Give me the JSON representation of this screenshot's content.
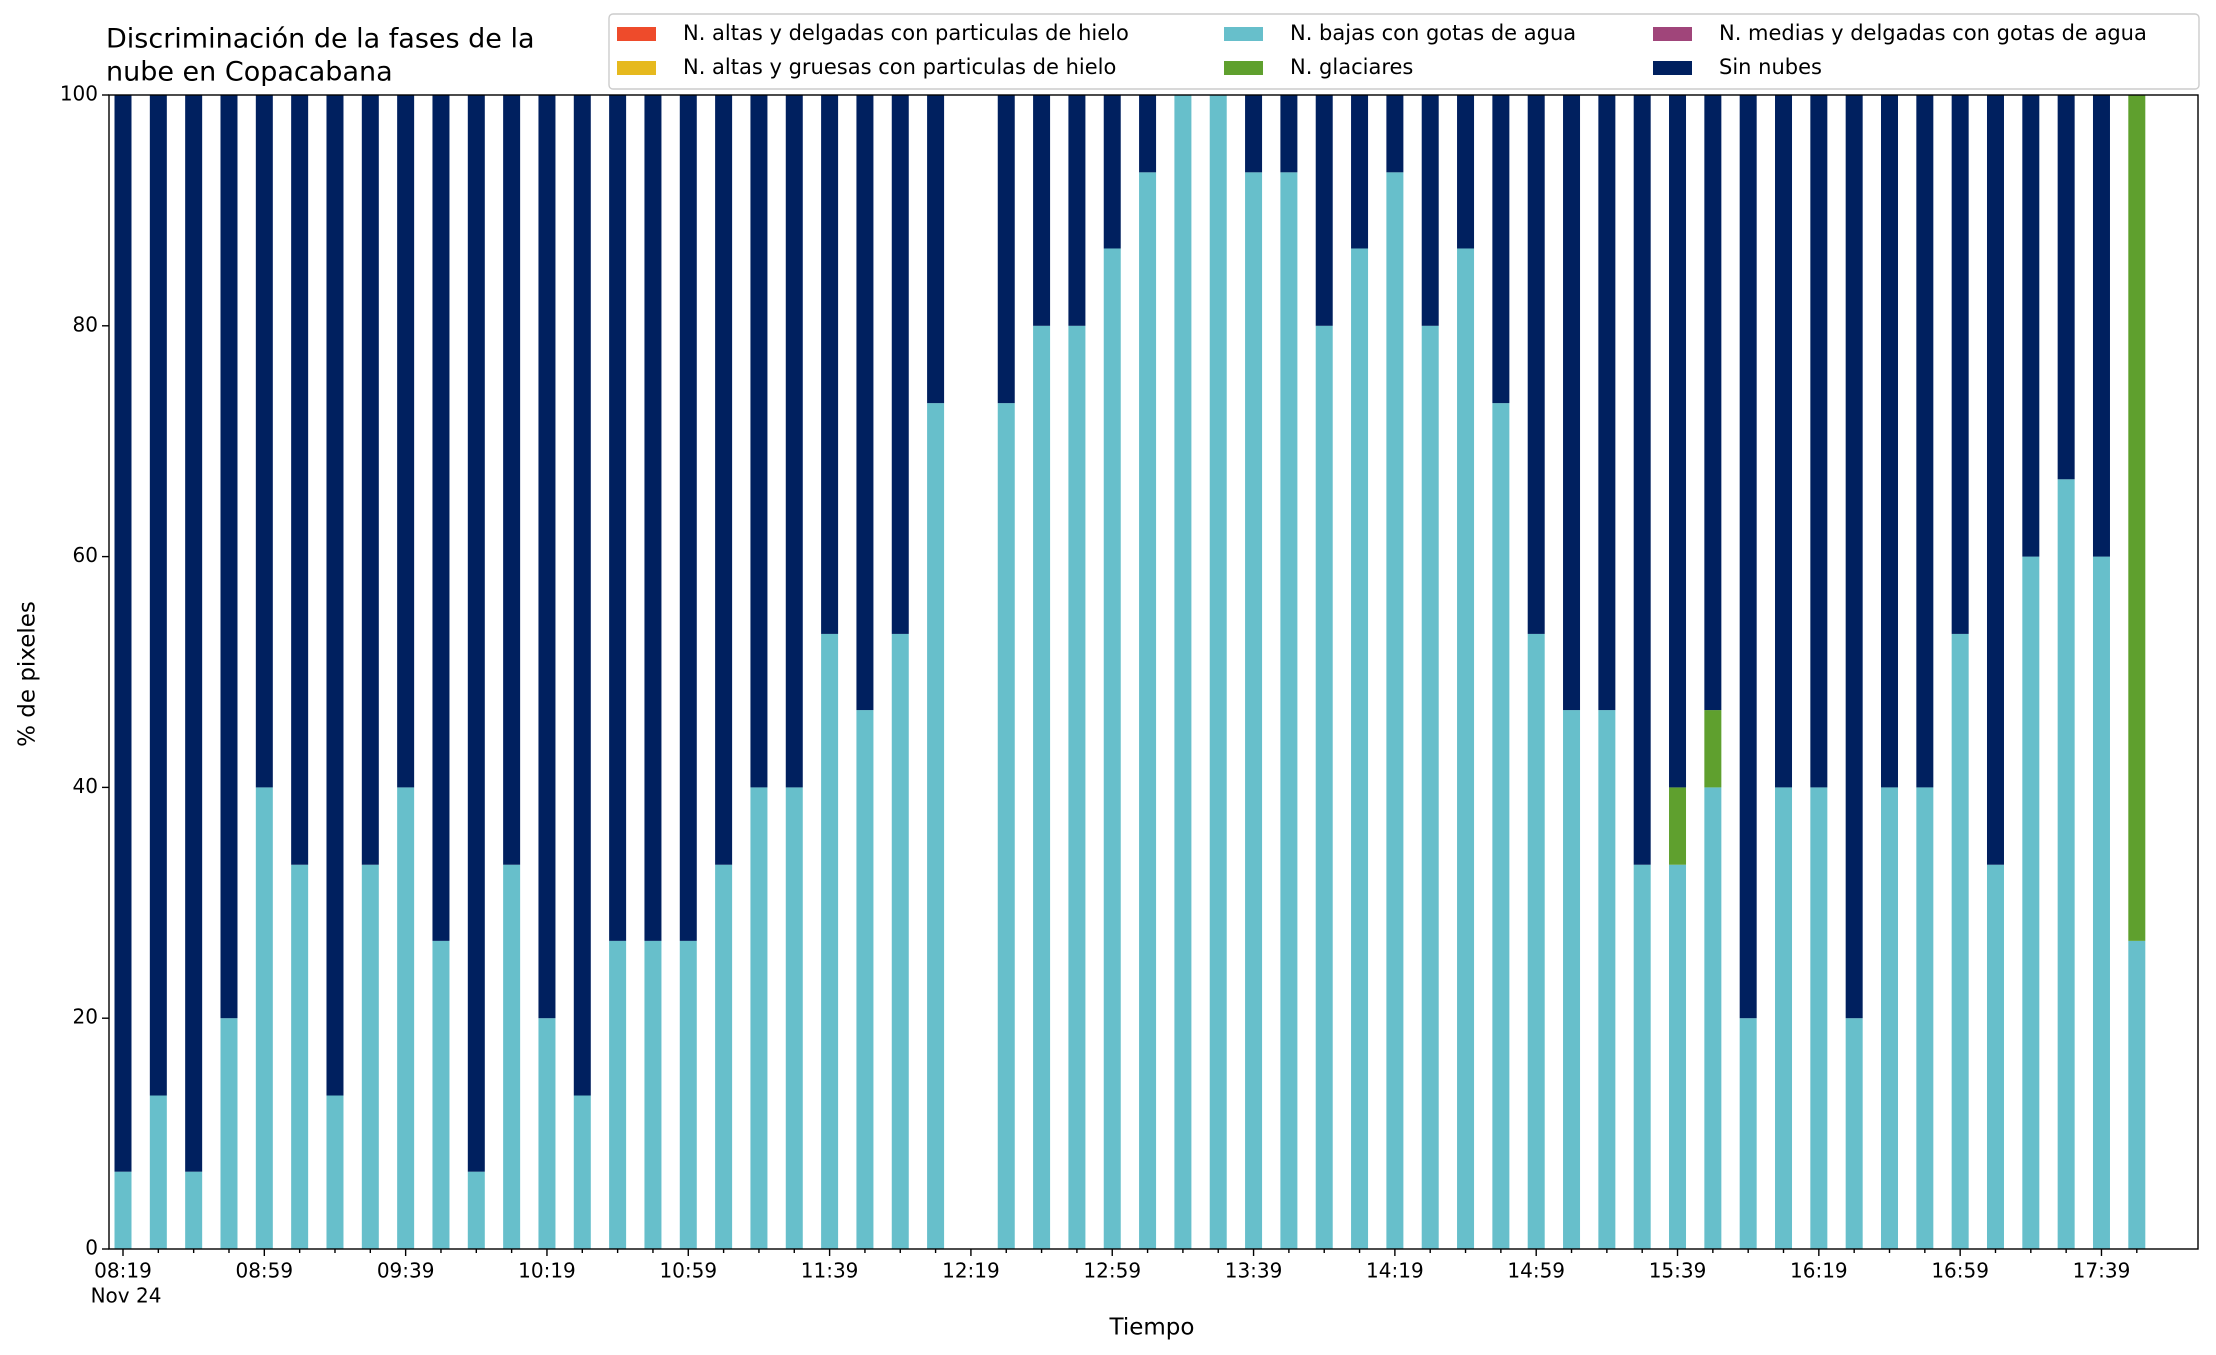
{
  "chart_data": {
    "type": "stacked_bar",
    "title": [
      "Discriminación de la fases de la",
      "nube en Copacabana"
    ],
    "x_label": "Tiempo",
    "y_label": "% de pixeles",
    "x_sublabel": "Nov 24",
    "categories": [
      "08:19",
      null,
      null,
      null,
      "08:59",
      null,
      null,
      null,
      "09:39",
      null,
      null,
      null,
      "10:19",
      null,
      null,
      null,
      "10:59",
      null,
      null,
      null,
      "11:39",
      null,
      null,
      null,
      "12:19",
      null,
      null,
      null,
      "12:59",
      null,
      null,
      null,
      "13:39",
      null,
      null,
      null,
      "14:19",
      null,
      null,
      null,
      "14:59",
      null,
      null,
      null,
      "15:39",
      null,
      null,
      null,
      "16:19",
      null,
      null,
      null,
      "16:59",
      null,
      null,
      null,
      "17:39",
      null
    ],
    "series": [
      {
        "name": "N. altas y delgadas con particulas de hielo",
        "color": "#ee4b2b",
        "values": [
          0,
          0,
          0,
          0,
          0,
          0,
          0,
          0,
          0,
          0,
          0,
          0,
          0,
          0,
          0,
          0,
          0,
          0,
          0,
          0,
          0,
          0,
          0,
          0,
          null,
          0,
          0,
          0,
          0,
          0,
          0,
          0,
          0,
          0,
          0,
          0,
          0,
          0,
          0,
          0,
          0,
          0,
          0,
          0,
          0,
          0,
          0,
          0,
          0,
          0,
          0,
          0,
          0,
          0,
          0,
          0,
          0,
          0
        ]
      },
      {
        "name": "N. altas y gruesas con particulas de hielo",
        "color": "#e6b91e",
        "values": [
          0,
          0,
          0,
          0,
          0,
          0,
          0,
          0,
          0,
          0,
          0,
          0,
          0,
          0,
          0,
          0,
          0,
          0,
          0,
          0,
          0,
          0,
          0,
          0,
          null,
          0,
          0,
          0,
          0,
          0,
          0,
          0,
          0,
          0,
          0,
          0,
          0,
          0,
          0,
          0,
          0,
          0,
          0,
          0,
          0,
          0,
          0,
          0,
          0,
          0,
          0,
          0,
          0,
          0,
          0,
          0,
          0,
          0
        ]
      },
      {
        "name": "N. bajas con gotas de agua",
        "color": "#67bfcb",
        "values": [
          6.7,
          13.3,
          6.7,
          20,
          40,
          33.3,
          13.3,
          33.3,
          40,
          26.7,
          6.7,
          33.3,
          20,
          13.3,
          26.7,
          26.7,
          26.7,
          33.3,
          40,
          40,
          53.3,
          46.7,
          53.3,
          73.3,
          null,
          73.3,
          80,
          80,
          86.7,
          93.3,
          100,
          100,
          93.3,
          93.3,
          80,
          86.7,
          93.3,
          80,
          86.7,
          73.3,
          53.3,
          46.7,
          46.7,
          33.3,
          33.3,
          40,
          20,
          40,
          40,
          20,
          40,
          40,
          53.3,
          33.3,
          60,
          66.7,
          60,
          26.7
        ]
      },
      {
        "name": "N. glaciares",
        "color": "#5fa02e",
        "values": [
          0,
          0,
          0,
          0,
          0,
          0,
          0,
          0,
          0,
          0,
          0,
          0,
          0,
          0,
          0,
          0,
          0,
          0,
          0,
          0,
          0,
          0,
          0,
          0,
          null,
          0,
          0,
          0,
          0,
          0,
          0,
          0,
          0,
          0,
          0,
          0,
          0,
          0,
          0,
          0,
          0,
          0,
          0,
          0,
          6.7,
          6.7,
          0,
          0,
          0,
          0,
          0,
          0,
          0,
          0,
          0,
          0,
          0,
          73.3
        ]
      },
      {
        "name": "N. medias y delgadas con gotas de agua",
        "color": "#a0457a",
        "values": [
          0,
          0,
          0,
          0,
          0,
          0,
          0,
          0,
          0,
          0,
          0,
          0,
          0,
          0,
          0,
          0,
          0,
          0,
          0,
          0,
          0,
          0,
          0,
          0,
          null,
          0,
          0,
          0,
          0,
          0,
          0,
          0,
          0,
          0,
          0,
          0,
          0,
          0,
          0,
          0,
          0,
          0,
          0,
          0,
          0,
          0,
          0,
          0,
          0,
          0,
          0,
          0,
          0,
          0,
          0,
          0,
          0,
          0
        ]
      },
      {
        "name": "Sin nubes",
        "color": "#00205f",
        "values": [
          93.3,
          86.7,
          93.3,
          80,
          60,
          66.7,
          86.7,
          66.7,
          60,
          73.3,
          93.3,
          66.7,
          80,
          86.7,
          73.3,
          73.3,
          73.3,
          66.7,
          60,
          60,
          46.7,
          53.3,
          46.7,
          26.7,
          null,
          26.7,
          20,
          20,
          13.3,
          6.7,
          0,
          0,
          6.7,
          6.7,
          20,
          13.3,
          6.7,
          20,
          13.3,
          26.7,
          46.7,
          53.3,
          53.3,
          66.7,
          60,
          53.3,
          80,
          60,
          60,
          80,
          60,
          60,
          46.7,
          66.7,
          40,
          33.3,
          40,
          0
        ]
      }
    ],
    "ylim": [
      0,
      100
    ],
    "yticks": [
      0,
      20,
      40,
      60,
      80,
      100
    ],
    "grid": false,
    "legend": "upper right"
  }
}
